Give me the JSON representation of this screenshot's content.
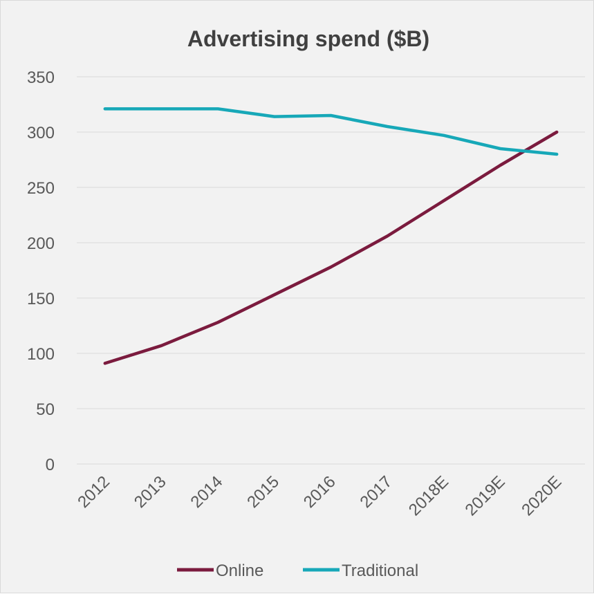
{
  "chart_data": {
    "type": "line",
    "title": "Advertising spend ($B)",
    "xlabel": "",
    "ylabel": "",
    "categories": [
      "2012",
      "2013",
      "2014",
      "2015",
      "2016",
      "2017",
      "2018E",
      "2019E",
      "2020E"
    ],
    "ylim": [
      0,
      350
    ],
    "yticks": [
      "0",
      "50",
      "100",
      "150",
      "200",
      "250",
      "300",
      "350"
    ],
    "grid": true,
    "legend_position": "bottom",
    "series": [
      {
        "name": "Online",
        "color": "#7b1b3e",
        "values": [
          91,
          107,
          128,
          153,
          178,
          206,
          238,
          270,
          300
        ]
      },
      {
        "name": "Traditional",
        "color": "#17a8b8",
        "values": [
          321,
          321,
          321,
          314,
          315,
          305,
          297,
          285,
          280
        ]
      }
    ]
  }
}
